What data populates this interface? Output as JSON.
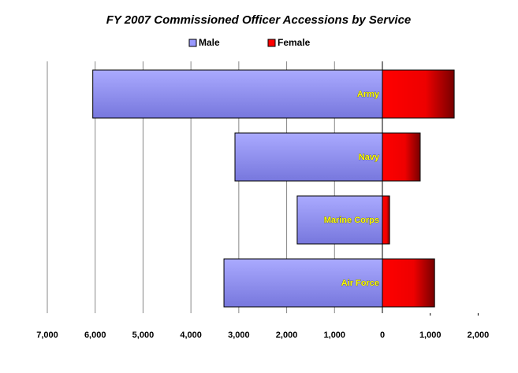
{
  "chart_data": {
    "type": "butterfly-bar",
    "title": "FY 2007 Commissioned Officer Accessions by Service",
    "categories": [
      "Army",
      "Navy",
      "Marine Corps",
      "Air Force"
    ],
    "series": [
      {
        "name": "Male",
        "color": "#9999ff",
        "side": "left",
        "values": [
          6050,
          3080,
          1780,
          3310
        ]
      },
      {
        "name": "Female",
        "color": "#ff0000",
        "side": "right",
        "values": [
          1500,
          790,
          150,
          1090
        ]
      }
    ],
    "xlim_left": [
      0,
      7000
    ],
    "xticks_left": [
      {
        "value": 7000,
        "label": "7,000"
      },
      {
        "value": 6000,
        "label": "6,000"
      },
      {
        "value": 5000,
        "label": "5,000"
      },
      {
        "value": 4000,
        "label": "4,000"
      },
      {
        "value": 3000,
        "label": "3,000"
      },
      {
        "value": 2000,
        "label": "2,000"
      },
      {
        "value": 1000,
        "label": "1,000"
      },
      0
    ],
    "xlim_right": [
      0,
      2000
    ],
    "xticks_right": [
      {
        "value": 1000,
        "label": "1,000"
      },
      {
        "value": 2000,
        "label": "2,000"
      }
    ],
    "grid": true
  }
}
